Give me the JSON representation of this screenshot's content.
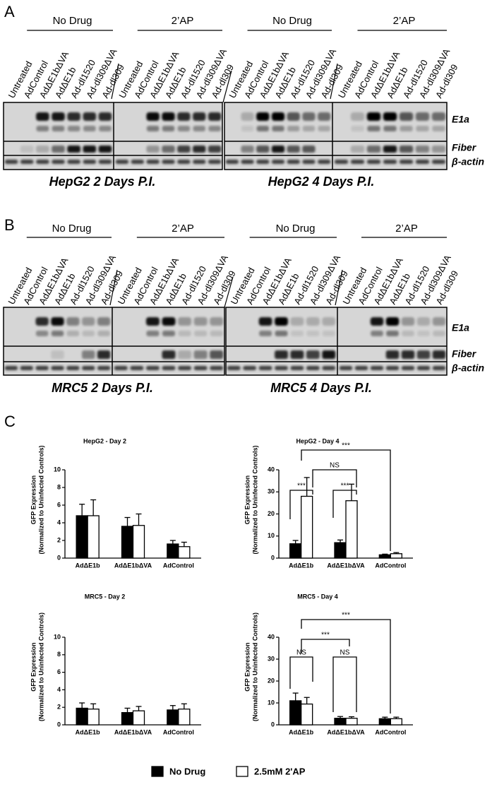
{
  "panel_a": {
    "letter": "A",
    "groups": [
      {
        "label": "No Drug",
        "lanes": [
          "Untreated",
          "AdControl",
          "AdΔE1bΔVA",
          "AdΔE1b",
          "Ad-dl1520",
          "Ad-dl309ΔVA",
          "Ad-dl309"
        ]
      },
      {
        "label": "2’AP",
        "lanes": [
          "Untreated",
          "AdControl",
          "AdΔE1bΔVA",
          "AdΔE1b",
          "Ad-dl1520",
          "Ad-dl309ΔVA",
          "Ad-dl309"
        ]
      },
      {
        "label": "No Drug",
        "lanes": [
          "Untreated",
          "AdControl",
          "AdΔE1bΔVA",
          "AdΔE1b",
          "Ad-dl1520",
          "Ad-dl309ΔVA",
          "Ad-dl309"
        ]
      },
      {
        "label": "2’AP",
        "lanes": [
          "Untreated",
          "AdControl",
          "AdΔE1bΔVA",
          "AdΔE1b",
          "Ad-dl1520",
          "Ad-dl309ΔVA",
          "Ad-dl309"
        ]
      }
    ],
    "rows": [
      "E1a",
      "Fiber",
      "β-actin"
    ],
    "captions": [
      "HepG2 2 Days P.I.",
      "HepG2 4 Days P.I."
    ]
  },
  "panel_b": {
    "letter": "B",
    "groups": [
      {
        "label": "No Drug",
        "lanes": [
          "Untreated",
          "AdControl",
          "AdΔE1bΔVA",
          "AdΔE1b",
          "Ad-dl1520",
          "Ad-dl309ΔVA",
          "Ad-dl309"
        ]
      },
      {
        "label": "2’AP",
        "lanes": [
          "Untreated",
          "AdControl",
          "AdΔE1bΔVA",
          "AdΔE1b",
          "Ad-dl1520",
          "Ad-dl309ΔVA",
          "Ad-dl309"
        ]
      },
      {
        "label": "No Drug",
        "lanes": [
          "Untreated",
          "AdControl",
          "AdΔE1bΔVA",
          "AdΔE1b",
          "Ad-dl1520",
          "Ad-dl309ΔVA",
          "Ad-dl309"
        ]
      },
      {
        "label": "2’AP",
        "lanes": [
          "Untreated",
          "AdControl",
          "AdΔE1bΔVA",
          "AdΔE1b",
          "Ad-dl1520",
          "Ad-dl309ΔVA",
          "Ad-dl309"
        ]
      }
    ],
    "rows": [
      "E1a",
      "Fiber",
      "β-actin"
    ],
    "captions": [
      "MRC5 2 Days P.I.",
      "MRC5 4 Days P.I."
    ]
  },
  "panel_c": {
    "letter": "C"
  },
  "chart_data": [
    {
      "type": "bar",
      "title": "HepG2 - Day 2",
      "ylabel": [
        "GFP Expression",
        "(Normalized to Uninfected Controls)"
      ],
      "categories": [
        "AdΔE1b",
        "AdΔE1bΔVA",
        "AdControl"
      ],
      "series": [
        {
          "name": "No Drug",
          "color": "#000000",
          "values": [
            4.8,
            3.6,
            1.6
          ],
          "errors": [
            1.3,
            1.0,
            0.4
          ]
        },
        {
          "name": "2.5mM 2'AP",
          "color": "#ffffff",
          "values": [
            4.8,
            3.7,
            1.3
          ],
          "errors": [
            1.8,
            1.3,
            0.5
          ]
        }
      ],
      "ylim": [
        0,
        10
      ],
      "yticks": [
        0,
        2,
        4,
        6,
        8,
        10
      ],
      "annotations": []
    },
    {
      "type": "bar",
      "title": "HepG2 - Day 4",
      "ylabel": [
        "GFP Expression",
        "(Normalized to Uninfected Controls)"
      ],
      "categories": [
        "AdΔE1b",
        "AdΔE1bΔVA",
        "AdControl"
      ],
      "series": [
        {
          "name": "No Drug",
          "color": "#000000",
          "values": [
            6.5,
            7.0,
            1.5
          ],
          "errors": [
            1.5,
            1.2,
            0.3
          ]
        },
        {
          "name": "2.5mM 2'AP",
          "color": "#ffffff",
          "values": [
            28,
            26,
            2.0
          ],
          "errors": [
            8.5,
            7.5,
            0.5
          ]
        }
      ],
      "ylim": [
        0,
        40
      ],
      "yticks": [
        0,
        10,
        20,
        30,
        40
      ],
      "annotations": [
        "***",
        "***",
        "NS",
        "***"
      ]
    },
    {
      "type": "bar",
      "title": "MRC5 - Day 2",
      "ylabel": [
        "GFP Expression",
        "(Normalized to Uninfected Controls)"
      ],
      "categories": [
        "AdΔE1b",
        "AdΔE1bΔVA",
        "AdControl"
      ],
      "series": [
        {
          "name": "No Drug",
          "color": "#000000",
          "values": [
            1.9,
            1.4,
            1.7
          ],
          "errors": [
            0.6,
            0.5,
            0.5
          ]
        },
        {
          "name": "2.5mM 2'AP",
          "color": "#ffffff",
          "values": [
            1.8,
            1.6,
            1.8
          ],
          "errors": [
            0.6,
            0.5,
            0.6
          ]
        }
      ],
      "ylim": [
        0,
        10
      ],
      "yticks": [
        0,
        2,
        4,
        6,
        8,
        10
      ],
      "annotations": []
    },
    {
      "type": "bar",
      "title": "MRC5 - Day 4",
      "ylabel": [
        "GFP Expression",
        "(Normalized to Uninfected Controls)"
      ],
      "categories": [
        "AdΔE1b",
        "AdΔE1bΔVA",
        "AdControl"
      ],
      "series": [
        {
          "name": "No Drug",
          "color": "#000000",
          "values": [
            11,
            3.0,
            2.8
          ],
          "errors": [
            3.5,
            0.8,
            0.7
          ]
        },
        {
          "name": "2.5mM 2'AP",
          "color": "#ffffff",
          "values": [
            9.5,
            3.0,
            2.8
          ],
          "errors": [
            3.0,
            0.7,
            0.7
          ]
        }
      ],
      "ylim": [
        0,
        40
      ],
      "yticks": [
        0,
        10,
        20,
        30,
        40
      ],
      "annotations": [
        "NS",
        "NS",
        "***",
        "***"
      ]
    }
  ]
}
